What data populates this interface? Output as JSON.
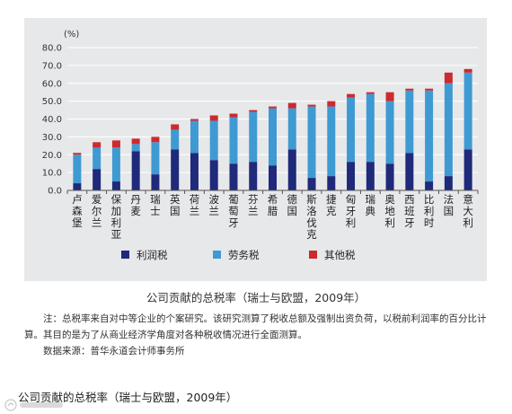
{
  "chart_data": {
    "type": "bar",
    "stacked": true,
    "y_unit": "(%)",
    "ylim": [
      0,
      80
    ],
    "y_ticks": [
      "0.0",
      "10.0",
      "20.0",
      "30.0",
      "40.0",
      "50.0",
      "60.0",
      "70.0",
      "80.0"
    ],
    "categories": [
      "卢森堡",
      "爱尔兰",
      "保加利亚",
      "丹麦",
      "瑞士",
      "英国",
      "荷兰",
      "波兰",
      "葡萄牙",
      "芬兰",
      "希腊",
      "德国",
      "斯洛伐克",
      "捷克",
      "匈牙利",
      "瑞典",
      "奥地利",
      "西班牙",
      "比利时",
      "法国",
      "意大利"
    ],
    "series": [
      {
        "name": "利润税",
        "color": "#1f2a7a",
        "values": [
          4,
          12,
          5,
          22,
          9,
          23,
          21,
          17,
          15,
          16,
          14,
          23,
          7,
          8,
          16,
          16,
          15,
          21,
          5,
          8,
          23
        ]
      },
      {
        "name": "劳务税",
        "color": "#3f9ad3",
        "values": [
          16,
          12,
          19,
          4,
          18,
          11,
          18,
          22,
          26,
          28,
          32,
          23,
          40,
          39,
          36,
          38,
          35,
          35,
          51,
          52,
          43
        ]
      },
      {
        "name": "其他税",
        "color": "#cc2a2e",
        "values": [
          1,
          3,
          4,
          3,
          3,
          3,
          1,
          3,
          2,
          1,
          1,
          3,
          1,
          3,
          2,
          1,
          5,
          1,
          1,
          6,
          2
        ]
      }
    ],
    "legend_position": "bottom",
    "grid": true
  },
  "caption": "公司贡献的总税率（瑞士与欧盟，2009年）",
  "note": "注：总税率来自对中等企业的个案研究。该研究测算了税收总额及强制出资负荷，以税前利润率的百分比计算。其目的是为了从商业经济学角度对各种税收情况进行全面测算。",
  "source": "数据来源：普华永道会计师事务所",
  "footer_title": "公司贡献的总税率（瑞士与欧盟，2009年）"
}
